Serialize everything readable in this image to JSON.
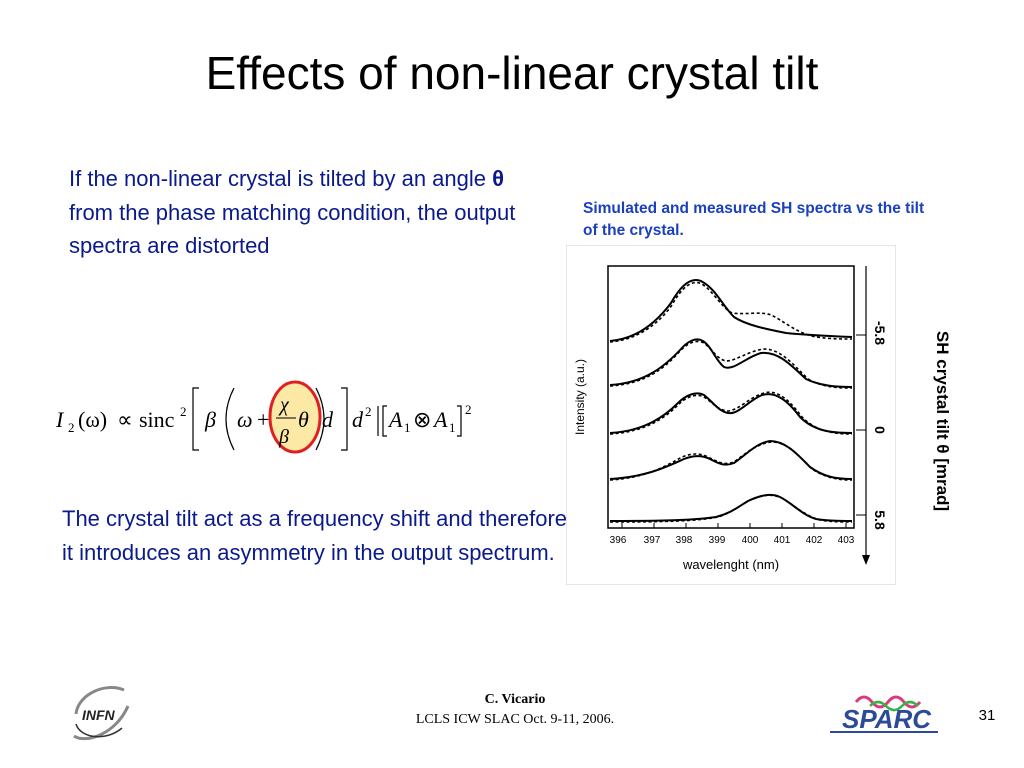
{
  "slide": {
    "title": "Effects of non-linear crystal tilt",
    "para1": {
      "before": "If the non-linear crystal is tilted by an angle ",
      "theta": "θ",
      "after": " from the phase matching condition, the output spectra are distorted"
    },
    "para2": "The crystal tilt act as a frequency shift and therefore it introduces an asymmetry in the output spectrum.",
    "figure": {
      "caption": "Simulated and measured SH spectra vs the tilt of the crystal.",
      "ylabel": "Intensity (a.u.)",
      "xlabel": "wavelenght (nm)",
      "xticks": [
        "396",
        "397",
        "398",
        "399",
        "400",
        "401",
        "402",
        "403"
      ],
      "tilt_ticks": [
        "-5.8",
        "0",
        "5.8"
      ],
      "tilt_label": "SH crystal tilt θ [mrad]"
    },
    "formula": {
      "I": "I",
      "sub2": "2",
      "omega_paren": "(ω)",
      "propto": "∝",
      "sinc": "sinc",
      "sq": "2",
      "beta": "β",
      "omega": "ω",
      "plus": "+",
      "chi": "χ",
      "theta": "θ",
      "d": "d",
      "A": "A",
      "sub1": "1",
      "otimes": "⊗"
    },
    "footer": {
      "presenter": "C. Vicario",
      "event": "LCLS ICW SLAC Oct. 9-11, 2006.",
      "page": "31",
      "logo_left": "INFN",
      "logo_right": "SPARC"
    }
  }
}
